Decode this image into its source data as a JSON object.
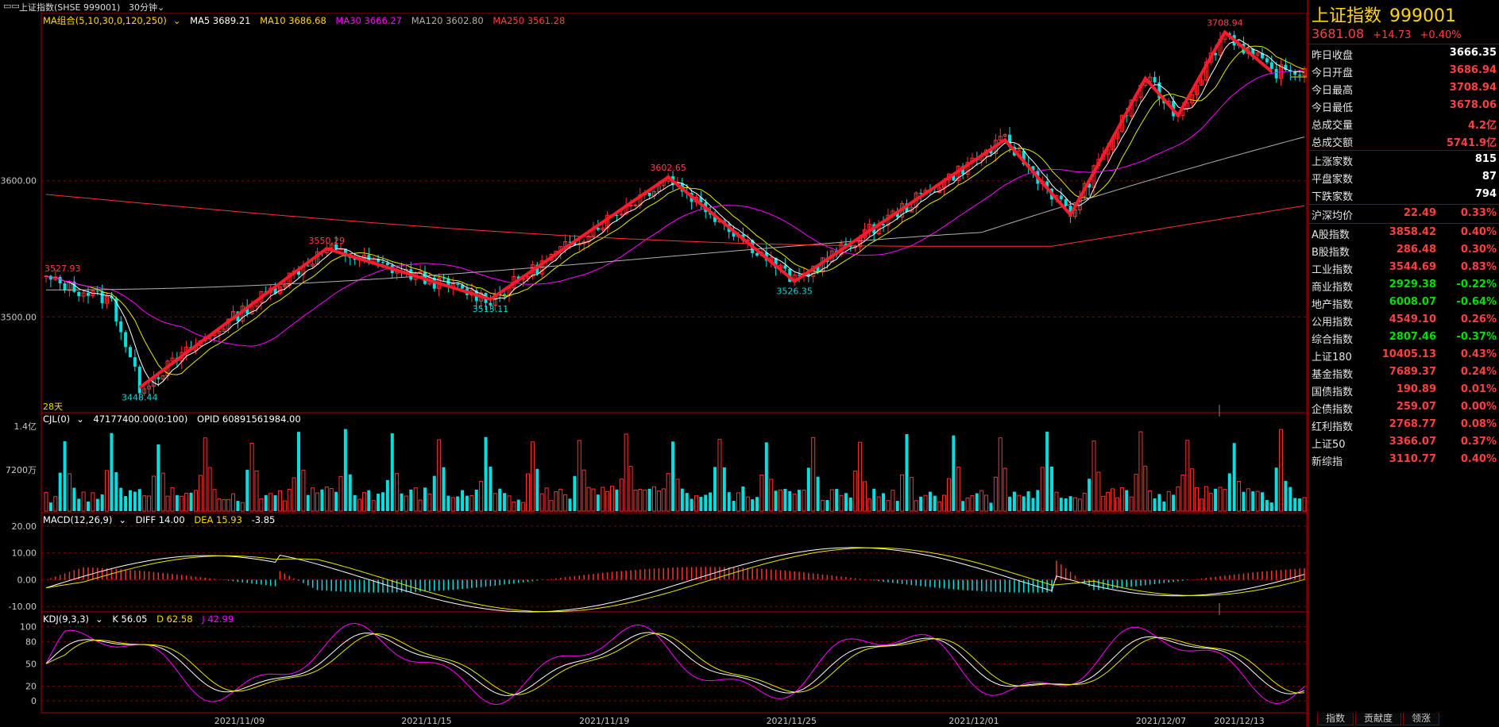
{
  "header": {
    "title": "上证指数(SHSE 999001)",
    "period": "30分钟"
  },
  "ma_legend": {
    "combo": "MA组合(5,10,30,0,120,250)",
    "ma5": "MA5 3689.21",
    "ma10": "MA10 3686.68",
    "ma30": "MA30 3666.27",
    "ma120": "MA120 3602.80",
    "ma250": "MA250 3561.28"
  },
  "vol_legend": {
    "name": "CJL(0)",
    "v1": "47177400.00(0:100)",
    "v2": "OPID 60891561984.00"
  },
  "macd_legend": {
    "name": "MACD(12,26,9)",
    "diff": "DIFF 14.00",
    "dea": "DEA 15.93",
    "macd": "-3.85"
  },
  "kdj_legend": {
    "name": "KDJ(9,3,3)",
    "k": "K 56.05",
    "d": "D 62.58",
    "j": "J 42.99"
  },
  "price_axis": [
    "3600.00",
    "3500.00"
  ],
  "vol_axis": [
    "1.4亿",
    "7200万"
  ],
  "macd_axis": [
    "20.00",
    "10.00",
    "0.00",
    "-10.00"
  ],
  "kdj_axis": [
    "100",
    "80",
    "50",
    "20",
    "0"
  ],
  "dates": [
    "2021/11/09",
    "2021/11/15",
    "2021/11/19",
    "2021/11/25",
    "2021/12/01",
    "2021/12/07",
    "2021/12/13"
  ],
  "annotations": {
    "a1": "3527.93",
    "a2": "3448.44",
    "a3": "3550.29",
    "a4": "3513.11",
    "a5": "3602.65",
    "a6": "3526.35",
    "a7": "3708.94",
    "days": "28天"
  },
  "zigzag_prices": [
    3448.44,
    3550.29,
    3513.11,
    3602.65,
    3526.35,
    3630,
    3575,
    3675,
    3648,
    3708.94,
    3680
  ],
  "colors": {
    "up": "#ff3030",
    "down": "#00e0e0",
    "zig": "#ff1a2e",
    "ma5": "#ffffff",
    "ma10": "#e8e800",
    "ma30": "#ff00ff",
    "ma120": "#b0b0b0",
    "ma250": "#ff3030"
  },
  "quote": {
    "name": "上证指数",
    "code": "999001",
    "price": "3681.08",
    "change": "+14.73",
    "pct": "+0.40%",
    "rows": [
      {
        "label": "昨日收盘",
        "value": "3666.35",
        "color": "white"
      },
      {
        "label": "今日开盘",
        "value": "3686.94",
        "color": "red"
      },
      {
        "label": "今日最高",
        "value": "3708.94",
        "color": "red"
      },
      {
        "label": "今日最低",
        "value": "3678.06",
        "color": "red"
      },
      {
        "label": "总成交量",
        "value": "4.2亿",
        "color": "red"
      },
      {
        "label": "总成交额",
        "value": "5741.9亿",
        "color": "red"
      }
    ],
    "breadth": [
      {
        "label": "上涨家数",
        "value": "815"
      },
      {
        "label": "平盘家数",
        "value": "87"
      },
      {
        "label": "下跌家数",
        "value": "794"
      }
    ],
    "avg": {
      "label": "沪深均价",
      "value": "22.49",
      "pct": "0.33%"
    },
    "indices": [
      {
        "label": "A股指数",
        "value": "3858.42",
        "pct": "0.40%",
        "color": "red"
      },
      {
        "label": "B股指数",
        "value": "286.48",
        "pct": "0.30%",
        "color": "red"
      },
      {
        "label": "工业指数",
        "value": "3544.69",
        "pct": "0.83%",
        "color": "red"
      },
      {
        "label": "商业指数",
        "value": "2929.38",
        "pct": "-0.22%",
        "color": "green"
      },
      {
        "label": "地产指数",
        "value": "6008.07",
        "pct": "-0.64%",
        "color": "green"
      },
      {
        "label": "公用指数",
        "value": "4549.10",
        "pct": "0.26%",
        "color": "red"
      },
      {
        "label": "综合指数",
        "value": "2807.46",
        "pct": "-0.37%",
        "color": "green"
      },
      {
        "label": "上证180",
        "value": "10405.13",
        "pct": "0.43%",
        "color": "red"
      },
      {
        "label": "基金指数",
        "value": "7689.37",
        "pct": "0.24%",
        "color": "red"
      },
      {
        "label": "国债指数",
        "value": "190.89",
        "pct": "0.01%",
        "color": "red"
      },
      {
        "label": "企债指数",
        "value": "259.07",
        "pct": "0.00%",
        "color": "red"
      },
      {
        "label": "红利指数",
        "value": "2768.77",
        "pct": "0.08%",
        "color": "red"
      },
      {
        "label": "上证50",
        "value": "3366.07",
        "pct": "0.37%",
        "color": "red"
      },
      {
        "label": "新综指",
        "value": "3110.77",
        "pct": "0.40%",
        "color": "red"
      }
    ]
  },
  "tabs": [
    "指数",
    "贡献度",
    "领涨"
  ]
}
